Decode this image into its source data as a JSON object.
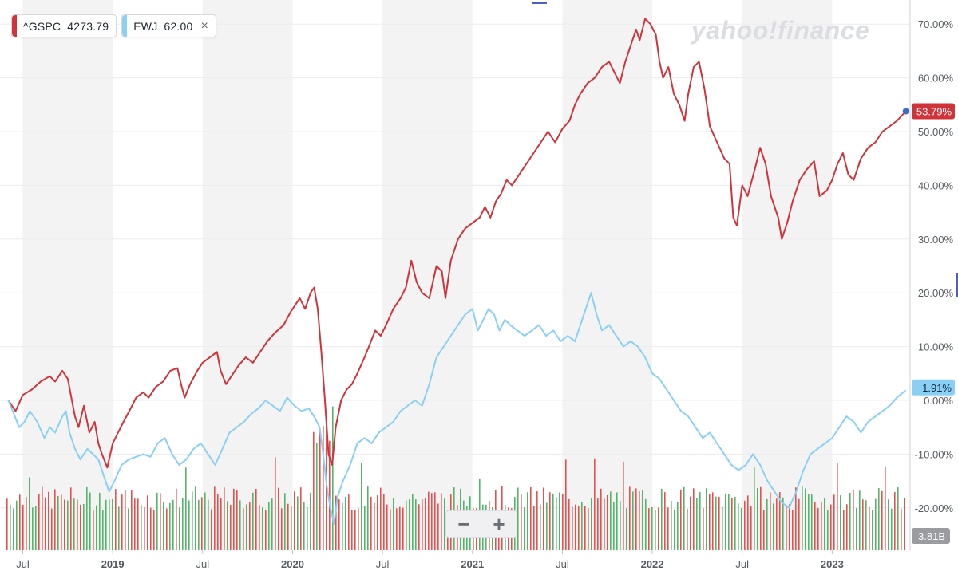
{
  "legend": [
    {
      "symbol": "^GSPC",
      "value": "4273.79",
      "color": "#d0333a"
    },
    {
      "symbol": "EWJ",
      "value": "62.00",
      "color": "#8ad0f5",
      "close_icon": "×"
    }
  ],
  "watermark": "yahoo!finance",
  "zoom": {
    "minus": "−",
    "plus": "+"
  },
  "colors": {
    "gspc": "#d0333a",
    "ewj": "#8ad0f5",
    "volume_up": "#54b46a",
    "volume_down": "#e2524f",
    "band": "#f3f3f4",
    "axis_text": "#555b62"
  },
  "chart_data": {
    "type": "line",
    "x_labels": [
      "Jul",
      "2019",
      "Jul",
      "2020",
      "Jul",
      "2021",
      "Jul",
      "2022",
      "Jul",
      "2023"
    ],
    "y_ticks": [
      "70.00%",
      "60.00%",
      "50.00%",
      "40.00%",
      "30.00%",
      "20.00%",
      "10.00%",
      "0.00%",
      "-10.00%",
      "-20.00%"
    ],
    "ylim": [
      -25,
      73
    ],
    "xlim": [
      2018.4,
      2023.46
    ],
    "series": [
      {
        "name": "^GSPC",
        "last_label": "53.79%",
        "points": [
          [
            2018.42,
            0
          ],
          [
            2018.46,
            -2
          ],
          [
            2018.5,
            1
          ],
          [
            2018.55,
            2
          ],
          [
            2018.6,
            3.5
          ],
          [
            2018.65,
            4.5
          ],
          [
            2018.68,
            3.5
          ],
          [
            2018.72,
            5.5
          ],
          [
            2018.75,
            4
          ],
          [
            2018.79,
            -3
          ],
          [
            2018.81,
            -5
          ],
          [
            2018.84,
            -1
          ],
          [
            2018.87,
            -6
          ],
          [
            2018.9,
            -4
          ],
          [
            2018.92,
            -8
          ],
          [
            2018.94,
            -10
          ],
          [
            2018.97,
            -12.5
          ],
          [
            2019.0,
            -8
          ],
          [
            2019.03,
            -6
          ],
          [
            2019.06,
            -4
          ],
          [
            2019.1,
            -1.5
          ],
          [
            2019.13,
            0.5
          ],
          [
            2019.17,
            1.5
          ],
          [
            2019.2,
            0.5
          ],
          [
            2019.24,
            2.5
          ],
          [
            2019.28,
            3.5
          ],
          [
            2019.32,
            5.5
          ],
          [
            2019.36,
            6
          ],
          [
            2019.38,
            3
          ],
          [
            2019.4,
            0.5
          ],
          [
            2019.43,
            3
          ],
          [
            2019.47,
            5.5
          ],
          [
            2019.5,
            7
          ],
          [
            2019.54,
            8
          ],
          [
            2019.58,
            9
          ],
          [
            2019.6,
            5.5
          ],
          [
            2019.63,
            3
          ],
          [
            2019.66,
            4.5
          ],
          [
            2019.7,
            6.5
          ],
          [
            2019.74,
            8
          ],
          [
            2019.78,
            7
          ],
          [
            2019.82,
            9
          ],
          [
            2019.86,
            11
          ],
          [
            2019.9,
            12.5
          ],
          [
            2019.95,
            14
          ],
          [
            2019.99,
            16.5
          ],
          [
            2020.02,
            18
          ],
          [
            2020.04,
            19
          ],
          [
            2020.07,
            17
          ],
          [
            2020.1,
            20
          ],
          [
            2020.12,
            21
          ],
          [
            2020.14,
            17
          ],
          [
            2020.16,
            9
          ],
          [
            2020.18,
            0
          ],
          [
            2020.2,
            -10
          ],
          [
            2020.22,
            -12
          ],
          [
            2020.24,
            -5
          ],
          [
            2020.27,
            0
          ],
          [
            2020.3,
            2
          ],
          [
            2020.33,
            3
          ],
          [
            2020.36,
            5
          ],
          [
            2020.4,
            8
          ],
          [
            2020.43,
            10.5
          ],
          [
            2020.46,
            13
          ],
          [
            2020.49,
            12
          ],
          [
            2020.52,
            14
          ],
          [
            2020.56,
            17
          ],
          [
            2020.6,
            19
          ],
          [
            2020.63,
            21
          ],
          [
            2020.66,
            26
          ],
          [
            2020.69,
            22
          ],
          [
            2020.72,
            20
          ],
          [
            2020.76,
            19
          ],
          [
            2020.8,
            25
          ],
          [
            2020.83,
            24
          ],
          [
            2020.85,
            19
          ],
          [
            2020.88,
            26
          ],
          [
            2020.92,
            30
          ],
          [
            2020.96,
            32
          ],
          [
            2021.0,
            33
          ],
          [
            2021.04,
            34
          ],
          [
            2021.07,
            36
          ],
          [
            2021.1,
            34
          ],
          [
            2021.13,
            37
          ],
          [
            2021.16,
            38.5
          ],
          [
            2021.19,
            41
          ],
          [
            2021.22,
            40
          ],
          [
            2021.26,
            42
          ],
          [
            2021.3,
            44
          ],
          [
            2021.34,
            46
          ],
          [
            2021.38,
            48
          ],
          [
            2021.42,
            50
          ],
          [
            2021.46,
            48
          ],
          [
            2021.5,
            50.5
          ],
          [
            2021.54,
            52
          ],
          [
            2021.57,
            55
          ],
          [
            2021.6,
            57
          ],
          [
            2021.64,
            59
          ],
          [
            2021.68,
            60
          ],
          [
            2021.72,
            62
          ],
          [
            2021.76,
            63
          ],
          [
            2021.79,
            61
          ],
          [
            2021.82,
            59
          ],
          [
            2021.85,
            63
          ],
          [
            2021.88,
            66
          ],
          [
            2021.91,
            69
          ],
          [
            2021.93,
            67
          ],
          [
            2021.96,
            71
          ],
          [
            2021.99,
            70
          ],
          [
            2022.02,
            68
          ],
          [
            2022.04,
            63
          ],
          [
            2022.06,
            60
          ],
          [
            2022.09,
            62
          ],
          [
            2022.12,
            57
          ],
          [
            2022.15,
            55
          ],
          [
            2022.18,
            52
          ],
          [
            2022.2,
            57
          ],
          [
            2022.23,
            62
          ],
          [
            2022.26,
            63
          ],
          [
            2022.29,
            58
          ],
          [
            2022.32,
            51
          ],
          [
            2022.36,
            48
          ],
          [
            2022.4,
            45
          ],
          [
            2022.43,
            44
          ],
          [
            2022.45,
            34
          ],
          [
            2022.47,
            32.5
          ],
          [
            2022.5,
            40
          ],
          [
            2022.53,
            38
          ],
          [
            2022.57,
            43
          ],
          [
            2022.6,
            47
          ],
          [
            2022.63,
            44
          ],
          [
            2022.66,
            38
          ],
          [
            2022.7,
            34
          ],
          [
            2022.72,
            30
          ],
          [
            2022.75,
            33
          ],
          [
            2022.78,
            37
          ],
          [
            2022.82,
            41
          ],
          [
            2022.86,
            43
          ],
          [
            2022.9,
            44.5
          ],
          [
            2022.93,
            38
          ],
          [
            2022.97,
            39
          ],
          [
            2023.0,
            41
          ],
          [
            2023.03,
            44
          ],
          [
            2023.06,
            46
          ],
          [
            2023.09,
            42
          ],
          [
            2023.12,
            41
          ],
          [
            2023.16,
            45
          ],
          [
            2023.2,
            47
          ],
          [
            2023.24,
            48
          ],
          [
            2023.28,
            50
          ],
          [
            2023.32,
            51
          ],
          [
            2023.36,
            52
          ],
          [
            2023.41,
            53.79
          ]
        ]
      },
      {
        "name": "EWJ",
        "last_label": "1.91%",
        "points": [
          [
            2018.42,
            0
          ],
          [
            2018.45,
            -2.5
          ],
          [
            2018.48,
            -5
          ],
          [
            2018.51,
            -4
          ],
          [
            2018.54,
            -2
          ],
          [
            2018.58,
            -4
          ],
          [
            2018.62,
            -7
          ],
          [
            2018.65,
            -5
          ],
          [
            2018.68,
            -6
          ],
          [
            2018.72,
            -3
          ],
          [
            2018.74,
            -2
          ],
          [
            2018.76,
            -6
          ],
          [
            2018.79,
            -9
          ],
          [
            2018.82,
            -11
          ],
          [
            2018.86,
            -9
          ],
          [
            2018.89,
            -10
          ],
          [
            2018.92,
            -11
          ],
          [
            2018.95,
            -14
          ],
          [
            2018.98,
            -17
          ],
          [
            2019.01,
            -15
          ],
          [
            2019.05,
            -12
          ],
          [
            2019.09,
            -11
          ],
          [
            2019.13,
            -10.5
          ],
          [
            2019.17,
            -10
          ],
          [
            2019.21,
            -10.5
          ],
          [
            2019.25,
            -8
          ],
          [
            2019.29,
            -7
          ],
          [
            2019.33,
            -10
          ],
          [
            2019.37,
            -12
          ],
          [
            2019.41,
            -11
          ],
          [
            2019.45,
            -9
          ],
          [
            2019.49,
            -8
          ],
          [
            2019.53,
            -10
          ],
          [
            2019.57,
            -12
          ],
          [
            2019.61,
            -9
          ],
          [
            2019.65,
            -6
          ],
          [
            2019.69,
            -5
          ],
          [
            2019.73,
            -4
          ],
          [
            2019.77,
            -2.5
          ],
          [
            2019.81,
            -1.5
          ],
          [
            2019.85,
            0
          ],
          [
            2019.89,
            -1
          ],
          [
            2019.93,
            -2
          ],
          [
            2019.97,
            0.5
          ],
          [
            2020.01,
            -1
          ],
          [
            2020.05,
            -2
          ],
          [
            2020.09,
            -1.5
          ],
          [
            2020.12,
            -3
          ],
          [
            2020.15,
            -5
          ],
          [
            2020.17,
            -10
          ],
          [
            2020.19,
            -16
          ],
          [
            2020.21,
            -20
          ],
          [
            2020.23,
            -23
          ],
          [
            2020.25,
            -18
          ],
          [
            2020.28,
            -15
          ],
          [
            2020.32,
            -12
          ],
          [
            2020.36,
            -8
          ],
          [
            2020.4,
            -7
          ],
          [
            2020.44,
            -8
          ],
          [
            2020.48,
            -6
          ],
          [
            2020.52,
            -5
          ],
          [
            2020.56,
            -4
          ],
          [
            2020.6,
            -2
          ],
          [
            2020.64,
            -1
          ],
          [
            2020.68,
            0
          ],
          [
            2020.72,
            -1
          ],
          [
            2020.76,
            3
          ],
          [
            2020.8,
            8
          ],
          [
            2020.84,
            10
          ],
          [
            2020.88,
            12
          ],
          [
            2020.92,
            14
          ],
          [
            2020.96,
            16
          ],
          [
            2021.0,
            17
          ],
          [
            2021.03,
            13
          ],
          [
            2021.06,
            15
          ],
          [
            2021.09,
            17
          ],
          [
            2021.12,
            16
          ],
          [
            2021.15,
            13
          ],
          [
            2021.18,
            15
          ],
          [
            2021.21,
            14
          ],
          [
            2021.25,
            13
          ],
          [
            2021.29,
            12
          ],
          [
            2021.33,
            13
          ],
          [
            2021.37,
            14
          ],
          [
            2021.41,
            12
          ],
          [
            2021.45,
            13
          ],
          [
            2021.49,
            11
          ],
          [
            2021.53,
            12
          ],
          [
            2021.57,
            11
          ],
          [
            2021.61,
            15
          ],
          [
            2021.64,
            18
          ],
          [
            2021.66,
            20
          ],
          [
            2021.69,
            16
          ],
          [
            2021.72,
            13
          ],
          [
            2021.76,
            14
          ],
          [
            2021.8,
            12
          ],
          [
            2021.84,
            10
          ],
          [
            2021.88,
            11
          ],
          [
            2021.92,
            10
          ],
          [
            2021.96,
            8
          ],
          [
            2022.0,
            5
          ],
          [
            2022.04,
            4
          ],
          [
            2022.08,
            2
          ],
          [
            2022.12,
            0
          ],
          [
            2022.16,
            -2
          ],
          [
            2022.2,
            -3
          ],
          [
            2022.24,
            -5
          ],
          [
            2022.28,
            -7
          ],
          [
            2022.32,
            -6
          ],
          [
            2022.36,
            -8
          ],
          [
            2022.4,
            -10
          ],
          [
            2022.44,
            -12
          ],
          [
            2022.48,
            -13
          ],
          [
            2022.52,
            -12
          ],
          [
            2022.56,
            -10
          ],
          [
            2022.6,
            -12
          ],
          [
            2022.64,
            -15
          ],
          [
            2022.68,
            -17
          ],
          [
            2022.72,
            -19
          ],
          [
            2022.76,
            -20
          ],
          [
            2022.8,
            -17
          ],
          [
            2022.84,
            -13
          ],
          [
            2022.88,
            -10
          ],
          [
            2022.92,
            -9
          ],
          [
            2022.96,
            -8
          ],
          [
            2023.0,
            -7
          ],
          [
            2023.04,
            -5
          ],
          [
            2023.08,
            -3
          ],
          [
            2023.12,
            -4
          ],
          [
            2023.16,
            -6
          ],
          [
            2023.2,
            -4
          ],
          [
            2023.24,
            -3
          ],
          [
            2023.28,
            -2
          ],
          [
            2023.32,
            -1
          ],
          [
            2023.36,
            0.5
          ],
          [
            2023.41,
            1.91
          ]
        ]
      }
    ],
    "volume_label": "3.81B"
  }
}
